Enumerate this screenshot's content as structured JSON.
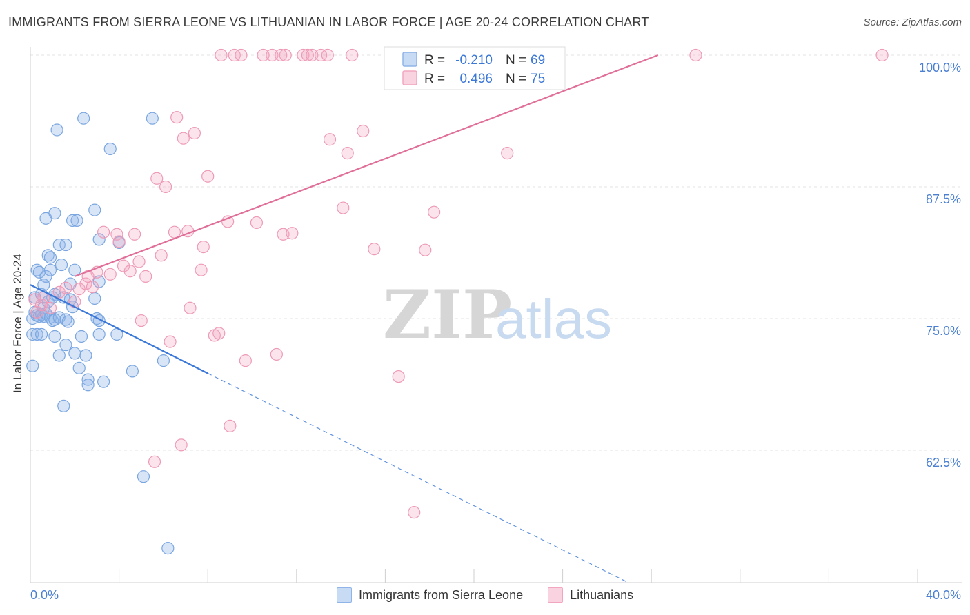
{
  "title": "IMMIGRANTS FROM SIERRA LEONE VS LITHUANIAN IN LABOR FORCE | AGE 20-24 CORRELATION CHART",
  "source": "Source: ZipAtlas.com",
  "watermark": {
    "zip": "ZIP",
    "atlas": "atlas"
  },
  "chart_data": {
    "type": "scatter",
    "xlabel": "",
    "ylabel": "In Labor Force | Age 20-24",
    "xlim": [
      0,
      40
    ],
    "ylim": [
      50,
      101.5
    ],
    "x_tick_labels": [
      "0.0%",
      "40.0%"
    ],
    "y_ticks": [
      62.5,
      75.0,
      87.5,
      100.0
    ],
    "y_tick_labels": [
      "62.5%",
      "75.0%",
      "87.5%",
      "100.0%"
    ],
    "grid": true,
    "legend_position": "top-center",
    "colors": {
      "blue": "#8fb5e8",
      "blue_line": "#3b78d8",
      "pink": "#f2a7bf",
      "pink_line": "#e07099"
    },
    "legend": [
      {
        "r_label": "R =",
        "r_value": "-0.210",
        "n_label": "N =",
        "n_value": "69"
      },
      {
        "r_label": "R =",
        "r_value": "0.496",
        "n_label": "N =",
        "n_value": "75"
      }
    ],
    "series": [
      {
        "name": "Immigrants from Sierra Leone",
        "color": "#8fb5e8",
        "trend": {
          "x0": 0,
          "y0": 78.2,
          "x1": 8,
          "y1": 69.8,
          "x_dash_end": 26.9,
          "y_dash_end": 50.0
        },
        "points": [
          [
            0.1,
            70.5
          ],
          [
            0.1,
            73.5
          ],
          [
            0.1,
            75.0
          ],
          [
            0.2,
            75.6
          ],
          [
            0.2,
            77.0
          ],
          [
            0.3,
            79.6
          ],
          [
            0.3,
            75.3
          ],
          [
            0.3,
            73.5
          ],
          [
            0.4,
            79.4
          ],
          [
            0.4,
            75.2
          ],
          [
            0.5,
            77.3
          ],
          [
            0.5,
            75.4
          ],
          [
            0.5,
            73.5
          ],
          [
            0.6,
            78.2
          ],
          [
            0.6,
            75.2
          ],
          [
            0.6,
            76.0
          ],
          [
            0.7,
            84.5
          ],
          [
            0.7,
            79.0
          ],
          [
            0.7,
            75.5
          ],
          [
            0.8,
            81.0
          ],
          [
            0.8,
            76.6
          ],
          [
            0.9,
            80.8
          ],
          [
            0.9,
            79.6
          ],
          [
            0.9,
            75.1
          ],
          [
            1.0,
            77.0
          ],
          [
            1.0,
            74.8
          ],
          [
            1.1,
            85.0
          ],
          [
            1.1,
            77.3
          ],
          [
            1.1,
            74.9
          ],
          [
            1.1,
            73.3
          ],
          [
            1.2,
            92.9
          ],
          [
            1.3,
            82.0
          ],
          [
            1.3,
            75.1
          ],
          [
            1.3,
            71.5
          ],
          [
            1.4,
            80.1
          ],
          [
            1.5,
            77.0
          ],
          [
            1.5,
            66.7
          ],
          [
            1.6,
            82.0
          ],
          [
            1.6,
            74.9
          ],
          [
            1.6,
            72.5
          ],
          [
            1.7,
            74.7
          ],
          [
            1.8,
            78.3
          ],
          [
            1.8,
            76.8
          ],
          [
            1.9,
            84.3
          ],
          [
            1.9,
            76.1
          ],
          [
            2.0,
            79.6
          ],
          [
            2.0,
            71.7
          ],
          [
            2.1,
            84.3
          ],
          [
            2.2,
            70.3
          ],
          [
            2.3,
            73.3
          ],
          [
            2.4,
            94.0
          ],
          [
            2.5,
            71.5
          ],
          [
            2.6,
            69.2
          ],
          [
            2.6,
            68.7
          ],
          [
            2.9,
            85.3
          ],
          [
            2.9,
            76.9
          ],
          [
            3.0,
            75.0
          ],
          [
            3.1,
            78.5
          ],
          [
            3.1,
            74.8
          ],
          [
            3.3,
            69.0
          ],
          [
            3.1,
            73.5
          ],
          [
            3.1,
            82.5
          ],
          [
            3.6,
            91.1
          ],
          [
            3.9,
            73.5
          ],
          [
            4.0,
            82.2
          ],
          [
            4.6,
            70.0
          ],
          [
            5.1,
            60.0
          ],
          [
            5.5,
            94.0
          ],
          [
            6.0,
            71.0
          ],
          [
            6.2,
            53.2
          ]
        ]
      },
      {
        "name": "Lithuanians",
        "color": "#f2a7bf",
        "trend": {
          "x0": 2.0,
          "y0": 79.0,
          "x1": 28.3,
          "y1": 100.0
        },
        "points": [
          [
            0.2,
            76.8
          ],
          [
            0.3,
            75.6
          ],
          [
            0.5,
            76.3
          ],
          [
            0.6,
            77.0
          ],
          [
            0.9,
            76.0
          ],
          [
            1.3,
            77.5
          ],
          [
            1.6,
            77.9
          ],
          [
            2.0,
            76.6
          ],
          [
            2.2,
            77.8
          ],
          [
            2.5,
            78.3
          ],
          [
            2.6,
            79.0
          ],
          [
            2.8,
            78.0
          ],
          [
            3.0,
            79.4
          ],
          [
            3.3,
            83.2
          ],
          [
            3.6,
            79.2
          ],
          [
            3.9,
            83.0
          ],
          [
            4.0,
            82.3
          ],
          [
            4.2,
            80.0
          ],
          [
            4.5,
            79.5
          ],
          [
            4.7,
            83.0
          ],
          [
            4.9,
            80.4
          ],
          [
            5.0,
            74.8
          ],
          [
            5.2,
            79.0
          ],
          [
            5.6,
            61.4
          ],
          [
            5.7,
            88.3
          ],
          [
            5.9,
            81.0
          ],
          [
            6.1,
            87.5
          ],
          [
            6.3,
            72.8
          ],
          [
            6.5,
            83.2
          ],
          [
            6.6,
            94.1
          ],
          [
            6.8,
            63.0
          ],
          [
            6.9,
            92.1
          ],
          [
            7.1,
            83.3
          ],
          [
            7.2,
            76.0
          ],
          [
            7.4,
            92.6
          ],
          [
            7.7,
            79.6
          ],
          [
            7.8,
            81.8
          ],
          [
            8.0,
            88.5
          ],
          [
            8.3,
            73.4
          ],
          [
            8.5,
            73.6
          ],
          [
            8.6,
            100.0
          ],
          [
            8.9,
            84.2
          ],
          [
            9.0,
            64.8
          ],
          [
            9.2,
            100.0
          ],
          [
            9.5,
            100.0
          ],
          [
            9.7,
            71.0
          ],
          [
            10.2,
            84.1
          ],
          [
            10.5,
            100.0
          ],
          [
            10.9,
            100.0
          ],
          [
            11.1,
            71.6
          ],
          [
            11.3,
            100.0
          ],
          [
            11.4,
            83.0
          ],
          [
            11.5,
            100.0
          ],
          [
            11.8,
            83.1
          ],
          [
            12.3,
            100.0
          ],
          [
            12.5,
            100.0
          ],
          [
            12.7,
            100.0
          ],
          [
            13.1,
            100.0
          ],
          [
            13.4,
            100.0
          ],
          [
            13.5,
            92.0
          ],
          [
            14.1,
            85.5
          ],
          [
            14.3,
            90.7
          ],
          [
            14.5,
            100.0
          ],
          [
            15.0,
            92.8
          ],
          [
            15.5,
            81.6
          ],
          [
            16.3,
            100.0
          ],
          [
            16.6,
            69.5
          ],
          [
            17.3,
            56.6
          ],
          [
            17.8,
            81.5
          ],
          [
            18.2,
            85.1
          ],
          [
            18.5,
            100.0
          ],
          [
            21.5,
            90.7
          ],
          [
            23.6,
            100.0
          ],
          [
            30.0,
            100.0
          ],
          [
            38.4,
            100.0
          ]
        ]
      }
    ]
  }
}
